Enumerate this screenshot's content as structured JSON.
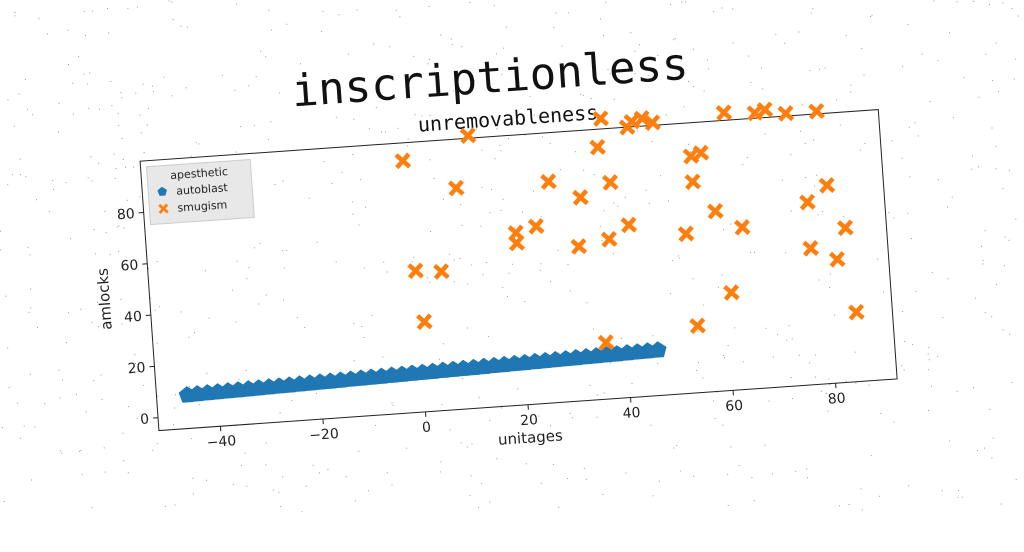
{
  "suptitle": "inscriptionless",
  "chart_data": {
    "type": "scatter",
    "title": "unremovableness",
    "xlabel": "unitages",
    "ylabel": "amlocks",
    "xlim": [
      -52,
      92
    ],
    "ylim": [
      -5,
      100
    ],
    "xticks": [
      -40,
      -20,
      0,
      20,
      40,
      60,
      80
    ],
    "yticks": [
      0,
      20,
      40,
      60,
      80
    ],
    "grid": false,
    "legend": {
      "title": "apesthetic",
      "position": "top-left"
    },
    "series": [
      {
        "name": "autoblast",
        "marker": "pentagon",
        "color": "#1f77b4",
        "points": [
          [
            -46,
            8.0
          ],
          [
            -44,
            8.1
          ],
          [
            -42,
            8.2
          ],
          [
            -40,
            8.3
          ],
          [
            -38,
            8.4
          ],
          [
            -36,
            8.5
          ],
          [
            -34,
            8.6
          ],
          [
            -32,
            8.7
          ],
          [
            -30,
            8.8
          ],
          [
            -28,
            8.9
          ],
          [
            -26,
            9.0
          ],
          [
            -24,
            9.1
          ],
          [
            -22,
            9.2
          ],
          [
            -20,
            9.3
          ],
          [
            -18,
            9.4
          ],
          [
            -16,
            9.5
          ],
          [
            -14,
            9.6
          ],
          [
            -12,
            9.7
          ],
          [
            -10,
            9.8
          ],
          [
            -8,
            9.9
          ],
          [
            -6,
            10.0
          ],
          [
            -4,
            10.1
          ],
          [
            -2,
            10.2
          ],
          [
            0,
            10.3
          ],
          [
            2,
            10.4
          ],
          [
            4,
            10.5
          ],
          [
            6,
            10.6
          ],
          [
            8,
            10.7
          ],
          [
            10,
            10.8
          ],
          [
            12,
            10.9
          ],
          [
            14,
            11.0
          ],
          [
            16,
            11.1
          ],
          [
            18,
            11.2
          ],
          [
            20,
            11.3
          ],
          [
            22,
            11.4
          ],
          [
            24,
            11.5
          ],
          [
            26,
            11.6
          ],
          [
            28,
            11.7
          ],
          [
            30,
            11.8
          ],
          [
            32,
            11.9
          ],
          [
            34,
            12.0
          ],
          [
            36,
            12.1
          ],
          [
            38,
            12.2
          ],
          [
            40,
            12.3
          ],
          [
            42,
            12.4
          ],
          [
            44,
            12.5
          ],
          [
            46,
            12.6
          ]
        ]
      },
      {
        "name": "smugism",
        "marker": "x",
        "color": "#ff7f0e",
        "points": [
          [
            -1,
            93
          ],
          [
            0,
            50
          ],
          [
            1,
            30
          ],
          [
            5,
            49
          ],
          [
            9,
            81
          ],
          [
            12,
            101
          ],
          [
            20,
            58
          ],
          [
            20,
            62
          ],
          [
            24,
            64
          ],
          [
            27,
            81
          ],
          [
            32,
            55
          ],
          [
            33,
            74
          ],
          [
            36,
            17
          ],
          [
            37,
            93
          ],
          [
            38,
            57
          ],
          [
            39,
            79
          ],
          [
            42,
            62
          ],
          [
            43,
            100
          ],
          [
            44,
            102
          ],
          [
            46,
            103
          ],
          [
            48,
            101
          ],
          [
            38,
            104
          ],
          [
            53,
            57
          ],
          [
            54,
            21
          ],
          [
            55,
            87
          ],
          [
            55,
            77
          ],
          [
            57,
            88
          ],
          [
            59,
            65
          ],
          [
            61,
            33
          ],
          [
            62,
            103
          ],
          [
            64,
            58
          ],
          [
            68,
            102
          ],
          [
            70,
            103
          ],
          [
            74,
            101
          ],
          [
            77,
            66
          ],
          [
            77,
            48
          ],
          [
            80,
            101
          ],
          [
            81,
            72
          ],
          [
            82,
            43
          ],
          [
            84,
            55
          ],
          [
            85,
            22
          ]
        ]
      }
    ]
  }
}
